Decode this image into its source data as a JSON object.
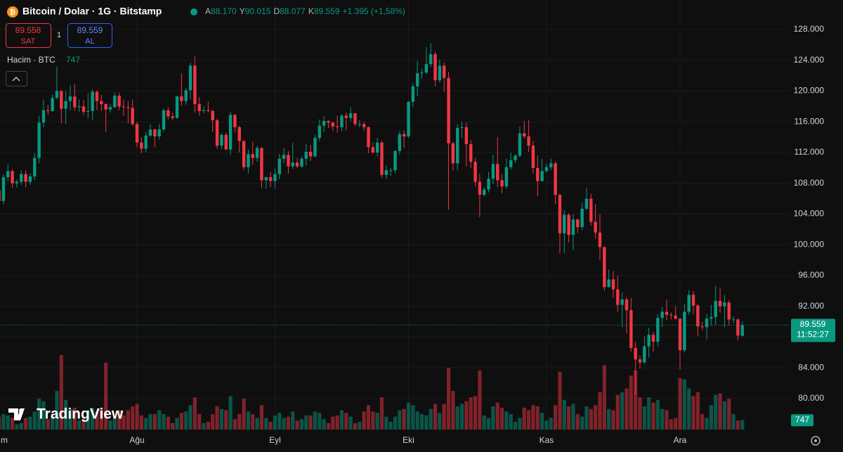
{
  "header": {
    "symbol": "Bitcoin / Dolar · 1G · Bitstamp",
    "o_label": "A",
    "o": "88.170",
    "h_label": "Y",
    "h": "90.015",
    "l_label": "D",
    "l": "88.077",
    "c_label": "K",
    "c": "89.559",
    "change": "+1.395 (+1,58%)"
  },
  "trade": {
    "sell_price": "89.558",
    "sell": "SAT",
    "qty": "1",
    "buy_price": "89.559",
    "buy": "AL"
  },
  "volume_legend": {
    "label": "Hacim · BTC",
    "value": "747"
  },
  "logo": "TradingView",
  "chart_data": {
    "type": "candlestick",
    "categories": [
      "m",
      null,
      null,
      null,
      null,
      null,
      null,
      null,
      null,
      null,
      null,
      null,
      null,
      null,
      null,
      null,
      null,
      null,
      null,
      null,
      null,
      null,
      null,
      null,
      null,
      null,
      null,
      null,
      null,
      null,
      null,
      "Ağu",
      null,
      null,
      null,
      null,
      null,
      null,
      null,
      null,
      null,
      null,
      null,
      null,
      null,
      null,
      null,
      null,
      null,
      null,
      null,
      null,
      null,
      null,
      null,
      null,
      null,
      null,
      null,
      null,
      null,
      null,
      "Eyl",
      null,
      null,
      null,
      null,
      null,
      null,
      null,
      null,
      null,
      null,
      null,
      null,
      null,
      null,
      null,
      null,
      null,
      null,
      null,
      null,
      null,
      null,
      null,
      null,
      null,
      null,
      null,
      null,
      null,
      "Eki",
      null,
      null,
      null,
      null,
      null,
      null,
      null,
      null,
      null,
      null,
      null,
      null,
      null,
      null,
      null,
      null,
      null,
      null,
      null,
      null,
      null,
      null,
      null,
      null,
      null,
      null,
      null,
      null,
      null,
      null,
      "Kas",
      null,
      null,
      null,
      null,
      null,
      null,
      null,
      null,
      null,
      null,
      null,
      null,
      null,
      null,
      null,
      null,
      null,
      null,
      null,
      null,
      null,
      null,
      null,
      null,
      null,
      null,
      null,
      null,
      null,
      "Ara",
      null,
      null,
      null,
      null,
      null,
      null,
      null,
      null,
      null,
      null,
      null,
      null,
      null,
      null
    ],
    "open": [
      107100,
      105700,
      108800,
      109600,
      108000,
      108200,
      109200,
      108200,
      108900,
      111300,
      115900,
      117500,
      117400,
      119100,
      120000,
      117700,
      118700,
      119300,
      117900,
      118000,
      117300,
      117400,
      119900,
      118700,
      118300,
      117600,
      117900,
      119400,
      118000,
      117900,
      117800,
      115700,
      113300,
      112500,
      114200,
      115000,
      114100,
      115000,
      117500,
      116700,
      116500,
      119300,
      118700,
      120100,
      123300,
      118300,
      117400,
      117500,
      117400,
      116200,
      112900,
      114300,
      112400,
      116900,
      115300,
      113500,
      110100,
      111800,
      111300,
      112600,
      108400,
      108800,
      108300,
      109200,
      111200,
      111700,
      110200,
      110700,
      110200,
      111200,
      112100,
      111500,
      113900,
      115500,
      116100,
      115900,
      115400,
      115300,
      116800,
      116500,
      117100,
      115700,
      115700,
      115300,
      112700,
      112000,
      113300,
      109100,
      109700,
      109700,
      112200,
      114400,
      114100,
      118600,
      120600,
      122300,
      122400,
      123500,
      124800,
      121400,
      123300,
      121700,
      113200,
      110600,
      115200,
      115300,
      113100,
      110800,
      108200,
      106500,
      107200,
      108600,
      110500,
      108400,
      107600,
      110100,
      111000,
      111600,
      114500,
      114100,
      112900,
      110000,
      108300,
      109600,
      110100,
      110600,
      106500,
      101500,
      103900,
      101300,
      103300,
      102300,
      104700,
      106000,
      103000,
      101600,
      99700,
      94500,
      95500,
      94200,
      92200,
      92900,
      91500,
      86600,
      85100,
      84700,
      86800,
      88300,
      87400,
      90500,
      91300,
      90900,
      90800,
      90400,
      86300,
      91300,
      93500,
      92100,
      89400,
      89300,
      90400,
      90600,
      92700,
      92000,
      92500,
      90300,
      90300,
      88170
    ],
    "high": [
      107900,
      109200,
      110500,
      109800,
      108500,
      109700,
      109700,
      109300,
      111900,
      116800,
      118900,
      118200,
      119500,
      123200,
      120100,
      120000,
      120800,
      120900,
      118900,
      118800,
      119700,
      120200,
      120100,
      119500,
      118400,
      118300,
      119800,
      119800,
      118900,
      118700,
      118900,
      116000,
      114000,
      114700,
      115700,
      115100,
      115700,
      117700,
      117900,
      117200,
      119400,
      122300,
      120400,
      123700,
      124500,
      119200,
      118000,
      118600,
      117600,
      116400,
      114500,
      114600,
      117300,
      117000,
      115500,
      113600,
      112400,
      113400,
      112900,
      112700,
      108900,
      109500,
      109900,
      111800,
      112600,
      112200,
      113300,
      111300,
      111500,
      113100,
      113000,
      114300,
      116300,
      116700,
      116200,
      116000,
      116800,
      117000,
      117200,
      117900,
      117100,
      116200,
      116000,
      115400,
      113300,
      113900,
      113500,
      110300,
      110000,
      112300,
      114800,
      114900,
      118700,
      121000,
      123900,
      122900,
      125700,
      126200,
      125100,
      124100,
      123700,
      122500,
      113400,
      115700,
      116000,
      115900,
      113600,
      111300,
      109200,
      107500,
      109500,
      111700,
      114000,
      109200,
      111200,
      112000,
      111800,
      115400,
      116100,
      116200,
      113500,
      111600,
      111200,
      110600,
      111200,
      110800,
      106600,
      104500,
      104100,
      104000,
      103400,
      105500,
      107400,
      106600,
      105300,
      104000,
      99800,
      96800,
      96600,
      96000,
      93800,
      93200,
      93100,
      87400,
      85600,
      88100,
      89200,
      88700,
      91000,
      91900,
      92900,
      91200,
      92000,
      90500,
      92300,
      94100,
      94000,
      92300,
      90000,
      91000,
      92200,
      94600,
      94400,
      93500,
      92800,
      90700,
      90400,
      90015
    ],
    "low": [
      105100,
      105300,
      108300,
      107400,
      107400,
      107800,
      107500,
      107800,
      108400,
      110600,
      115300,
      116900,
      117300,
      118900,
      115800,
      115700,
      117500,
      117400,
      117300,
      116900,
      116500,
      116200,
      117500,
      117400,
      114700,
      117200,
      117800,
      117500,
      116800,
      115800,
      115500,
      112700,
      111900,
      112000,
      114000,
      112700,
      113700,
      114700,
      116300,
      116200,
      116400,
      118100,
      118200,
      118900,
      117200,
      116800,
      117100,
      117200,
      114700,
      112500,
      112400,
      112300,
      111700,
      114600,
      112000,
      109700,
      109300,
      110400,
      110800,
      107400,
      107300,
      107500,
      107300,
      108500,
      110600,
      109300,
      109900,
      110000,
      110000,
      110300,
      110900,
      111400,
      113500,
      114700,
      115200,
      114800,
      114600,
      114800,
      114900,
      116100,
      115400,
      115300,
      114800,
      111900,
      111900,
      111500,
      108700,
      108600,
      109000,
      109300,
      111700,
      112600,
      113900,
      117900,
      119300,
      121600,
      122200,
      123100,
      120600,
      121100,
      119900,
      104600,
      109700,
      109700,
      113900,
      110200,
      110000,
      107600,
      103600,
      106300,
      106800,
      107900,
      107500,
      106700,
      107300,
      109800,
      110600,
      111400,
      113800,
      112100,
      109300,
      106300,
      108200,
      109400,
      109700,
      105300,
      98900,
      98900,
      100300,
      99300,
      101500,
      101900,
      104500,
      102500,
      100800,
      98000,
      94000,
      94500,
      93100,
      91300,
      89300,
      88500,
      86100,
      80600,
      83900,
      84600,
      85300,
      86100,
      86800,
      89300,
      90200,
      90300,
      90300,
      83800,
      86000,
      90900,
      91000,
      88100,
      88900,
      87700,
      89500,
      89600,
      91200,
      89300,
      89500,
      89800,
      87600,
      88077
    ],
    "close": [
      105700,
      108800,
      109600,
      108000,
      108200,
      109200,
      108200,
      108900,
      111300,
      115900,
      117500,
      117400,
      119100,
      120000,
      117700,
      118700,
      119300,
      117900,
      118000,
      117300,
      117400,
      119900,
      118700,
      118300,
      117600,
      117900,
      119400,
      118000,
      117900,
      117800,
      115700,
      113300,
      112500,
      114200,
      115000,
      114100,
      115000,
      117500,
      116700,
      116500,
      119300,
      118700,
      120100,
      123300,
      118300,
      117400,
      117500,
      117400,
      116200,
      112900,
      114300,
      112400,
      116900,
      115300,
      113500,
      110100,
      111800,
      111300,
      112600,
      108400,
      108800,
      108300,
      109200,
      111200,
      111700,
      110200,
      110700,
      110200,
      111200,
      112100,
      111500,
      113900,
      115500,
      116100,
      115900,
      115400,
      115300,
      116800,
      116500,
      117100,
      115700,
      115700,
      115300,
      112700,
      112000,
      113300,
      109100,
      109700,
      109700,
      112200,
      114400,
      114100,
      118600,
      120600,
      122300,
      122400,
      123500,
      124800,
      121400,
      123300,
      121700,
      113200,
      110600,
      115200,
      115300,
      113100,
      110800,
      108200,
      106500,
      107200,
      108600,
      110500,
      108400,
      107600,
      110100,
      111000,
      111600,
      114500,
      114100,
      112900,
      110000,
      108300,
      109600,
      110100,
      110600,
      106500,
      101500,
      103900,
      101300,
      103300,
      102300,
      104700,
      106000,
      103000,
      101600,
      99700,
      94500,
      95500,
      94200,
      92200,
      92900,
      91500,
      86600,
      85100,
      84700,
      86800,
      88300,
      87400,
      90500,
      91300,
      90900,
      90800,
      90400,
      86300,
      91300,
      93500,
      92100,
      89400,
      89300,
      90400,
      90600,
      92700,
      92000,
      92500,
      90300,
      90300,
      88200,
      89559
    ],
    "volume": [
      1000,
      1200,
      1100,
      900,
      400,
      500,
      900,
      1000,
      1400,
      2400,
      2200,
      800,
      900,
      3000,
      5800,
      2300,
      1600,
      1700,
      700,
      800,
      1500,
      1700,
      1400,
      1600,
      5200,
      700,
      900,
      1500,
      1100,
      1500,
      1800,
      2000,
      1100,
      900,
      1200,
      1200,
      1500,
      1200,
      1000,
      500,
      900,
      1300,
      1400,
      1900,
      2500,
      1200,
      500,
      600,
      1200,
      1800,
      1600,
      1500,
      2600,
      800,
      1200,
      2400,
      1400,
      1200,
      900,
      1900,
      900,
      600,
      1100,
      1300,
      900,
      1000,
      1400,
      700,
      800,
      1100,
      1100,
      1400,
      1300,
      800,
      500,
      1000,
      1100,
      1500,
      1300,
      1000,
      500,
      600,
      1400,
      1900,
      1400,
      1300,
      2500,
      1000,
      600,
      1000,
      1500,
      1600,
      2100,
      1900,
      1400,
      1200,
      1100,
      1600,
      2000,
      1300,
      2000,
      4800,
      3000,
      1800,
      2000,
      2200,
      2500,
      2600,
      4600,
      1100,
      900,
      1800,
      2100,
      1700,
      1400,
      1200,
      600,
      900,
      1700,
      1500,
      1900,
      1800,
      1300,
      700,
      900,
      1900,
      4500,
      2300,
      1800,
      2000,
      1200,
      1000,
      1800,
      1600,
      1900,
      2900,
      5000,
      1600,
      1500,
      2700,
      2900,
      3200,
      4200,
      4600,
      2500,
      1800,
      2500,
      2100,
      2300,
      1600,
      1500,
      800,
      900,
      4000,
      3900,
      3200,
      2600,
      2900,
      1200,
      900,
      1900,
      2700,
      2800,
      2200,
      2400,
      1200,
      700,
      747
    ],
    "up_color": "#089981",
    "down_color": "#f23645",
    "ylim": [
      75160,
      131840
    ],
    "yticks": [
      {
        "value": 80000,
        "label": "80.000"
      },
      {
        "value": 84000,
        "label": "84.000"
      },
      {
        "value": 88000,
        "label": "88.000"
      },
      {
        "value": 92000,
        "label": "92.000"
      },
      {
        "value": 96000,
        "label": "96.000"
      },
      {
        "value": 100000,
        "label": "100.000"
      },
      {
        "value": 104000,
        "label": "104.000"
      },
      {
        "value": 108000,
        "label": "108.000"
      },
      {
        "value": 112000,
        "label": "112.000"
      },
      {
        "value": 116000,
        "label": "116.000"
      },
      {
        "value": 120000,
        "label": "120.000"
      },
      {
        "value": 124000,
        "label": "124.000"
      },
      {
        "value": 128000,
        "label": "128.000"
      }
    ],
    "grid": true,
    "last_price_label": "89.559",
    "countdown": "11:52:27",
    "last_volume_label": "747"
  }
}
